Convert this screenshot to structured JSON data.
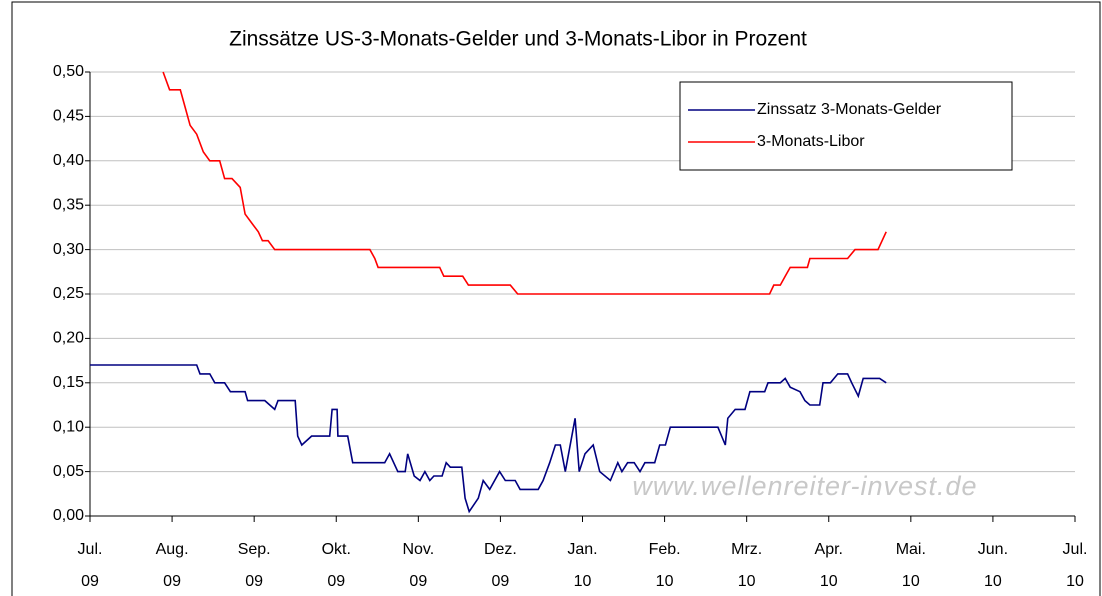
{
  "chart_data": {
    "type": "line",
    "title": "Zinssätze US-3-Monats-Gelder und 3-Monats-Libor in Prozent",
    "annotation": "www.wellenreiter-invest.de",
    "legend": "upper right",
    "grid": true,
    "xlim": [
      0,
      12
    ],
    "xticks": [
      {
        "value": 0,
        "label": "Jul. 09"
      },
      {
        "value": 1,
        "label": "Aug. 09"
      },
      {
        "value": 2,
        "label": "Sep. 09"
      },
      {
        "value": 3,
        "label": "Okt. 09"
      },
      {
        "value": 4,
        "label": "Nov. 09"
      },
      {
        "value": 5,
        "label": "Dez. 09"
      },
      {
        "value": 6,
        "label": "Jan. 10"
      },
      {
        "value": 7,
        "label": "Feb. 10"
      },
      {
        "value": 8,
        "label": "Mrz. 10"
      },
      {
        "value": 9,
        "label": "Apr. 10"
      },
      {
        "value": 10,
        "label": "Mai. 10"
      },
      {
        "value": 11,
        "label": "Jun. 10"
      },
      {
        "value": 12,
        "label": "Jul. 10"
      }
    ],
    "ylim": [
      0,
      0.5
    ],
    "yticks": [
      {
        "value": 0,
        "label": "0,00"
      },
      {
        "value": 0.05,
        "label": "0,05"
      },
      {
        "value": 0.1,
        "label": "0,10"
      },
      {
        "value": 0.15,
        "label": "0,15"
      },
      {
        "value": 0.2,
        "label": "0,20"
      },
      {
        "value": 0.25,
        "label": "0,25"
      },
      {
        "value": 0.3,
        "label": "0,30"
      },
      {
        "value": 0.35,
        "label": "0,35"
      },
      {
        "value": 0.4,
        "label": "0,40"
      },
      {
        "value": 0.45,
        "label": "0,45"
      },
      {
        "value": 0.5,
        "label": "0,50"
      }
    ],
    "series": [
      {
        "name": "Zinssatz 3-Monats-Gelder",
        "color": "#000080",
        "x": [
          0,
          1.3,
          1.34,
          1.46,
          1.52,
          1.64,
          1.71,
          1.89,
          1.92,
          2.13,
          2.25,
          2.29,
          2.5,
          2.53,
          2.58,
          2.7,
          2.92,
          2.95,
          3.01,
          3.02,
          3.14,
          3.2,
          3.59,
          3.65,
          3.75,
          3.84,
          3.87,
          3.95,
          4.02,
          4.08,
          4.14,
          4.19,
          4.29,
          4.34,
          4.39,
          4.53,
          4.57,
          4.62,
          4.73,
          4.79,
          4.87,
          4.99,
          5.06,
          5.18,
          5.24,
          5.46,
          5.52,
          5.6,
          5.67,
          5.73,
          5.79,
          5.91,
          5.96,
          6.03,
          6.13,
          6.21,
          6.34,
          6.43,
          6.48,
          6.55,
          6.63,
          6.7,
          6.76,
          6.88,
          6.94,
          7.01,
          7.07,
          7.65,
          7.74,
          7.77,
          7.86,
          7.98,
          8.04,
          8.22,
          8.26,
          8.41,
          8.47,
          8.53,
          8.65,
          8.71,
          8.77,
          8.89,
          8.93,
          9.02,
          9.11,
          9.23,
          9.28,
          9.36,
          9.42,
          9.62,
          9.7
        ],
        "values": [
          0.17,
          0.17,
          0.16,
          0.16,
          0.15,
          0.15,
          0.14,
          0.14,
          0.13,
          0.13,
          0.12,
          0.13,
          0.13,
          0.09,
          0.08,
          0.09,
          0.09,
          0.12,
          0.12,
          0.09,
          0.09,
          0.06,
          0.06,
          0.07,
          0.05,
          0.05,
          0.07,
          0.045,
          0.04,
          0.05,
          0.04,
          0.045,
          0.045,
          0.06,
          0.055,
          0.055,
          0.02,
          0.005,
          0.02,
          0.04,
          0.03,
          0.05,
          0.04,
          0.04,
          0.03,
          0.03,
          0.04,
          0.06,
          0.08,
          0.08,
          0.05,
          0.11,
          0.05,
          0.07,
          0.08,
          0.05,
          0.04,
          0.06,
          0.05,
          0.06,
          0.06,
          0.05,
          0.06,
          0.06,
          0.08,
          0.08,
          0.1,
          0.1,
          0.08,
          0.11,
          0.12,
          0.12,
          0.14,
          0.14,
          0.15,
          0.15,
          0.155,
          0.145,
          0.14,
          0.13,
          0.125,
          0.125,
          0.15,
          0.15,
          0.16,
          0.16,
          0.15,
          0.135,
          0.155,
          0.155,
          0.15
        ]
      },
      {
        "name": "3-Monats-Libor",
        "color": "#ff0000",
        "x": [
          0.89,
          0.97,
          1.1,
          1.16,
          1.22,
          1.3,
          1.38,
          1.46,
          1.58,
          1.64,
          1.73,
          1.83,
          1.89,
          1.97,
          2.05,
          2.1,
          2.17,
          2.25,
          3.41,
          3.47,
          3.51,
          4.26,
          4.31,
          4.54,
          4.61,
          5.12,
          5.21,
          8.28,
          8.33,
          8.41,
          8.47,
          8.53,
          8.74,
          8.77,
          9.23,
          9.32,
          9.6,
          9.7
        ],
        "values": [
          0.5,
          0.48,
          0.48,
          0.46,
          0.44,
          0.43,
          0.41,
          0.4,
          0.4,
          0.38,
          0.38,
          0.37,
          0.34,
          0.33,
          0.32,
          0.31,
          0.31,
          0.3,
          0.3,
          0.29,
          0.28,
          0.28,
          0.27,
          0.27,
          0.26,
          0.26,
          0.25,
          0.25,
          0.26,
          0.26,
          0.27,
          0.28,
          0.28,
          0.29,
          0.29,
          0.3,
          0.3,
          0.32
        ]
      }
    ]
  }
}
